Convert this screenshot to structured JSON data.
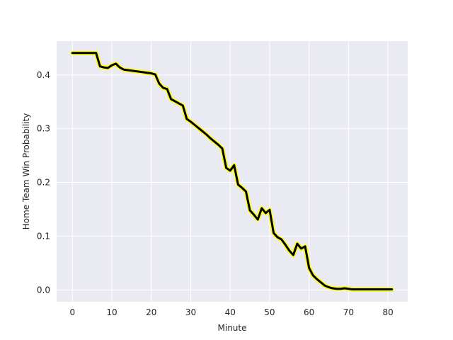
{
  "chart_data": {
    "type": "line",
    "title": "",
    "xlabel": "Minute",
    "ylabel": "Home Team Win Probability",
    "xlim": [
      -4,
      85
    ],
    "ylim": [
      -0.022,
      0.463
    ],
    "xticks": [
      0,
      10,
      20,
      30,
      40,
      50,
      60,
      70,
      80
    ],
    "yticks": [
      0.0,
      0.1,
      0.2,
      0.3,
      0.4
    ],
    "ytick_labels": [
      "0.0",
      "0.1",
      "0.2",
      "0.3",
      "0.4"
    ],
    "grid": true,
    "background": "#eaeaf2",
    "grid_color": "#ffffff",
    "series": [
      {
        "line_color": "#000000",
        "outline_color": "#ffff00",
        "x": [
          0,
          1,
          2,
          3,
          4,
          5,
          6,
          7,
          8,
          9,
          10,
          11,
          12,
          13,
          14,
          15,
          16,
          17,
          18,
          19,
          20,
          21,
          22,
          23,
          24,
          25,
          26,
          27,
          28,
          29,
          30,
          31,
          32,
          33,
          34,
          35,
          36,
          37,
          38,
          39,
          40,
          41,
          42,
          43,
          44,
          45,
          46,
          47,
          48,
          49,
          50,
          51,
          52,
          53,
          54,
          55,
          56,
          57,
          58,
          59,
          60,
          61,
          62,
          63,
          64,
          65,
          66,
          67,
          68,
          69,
          70,
          71,
          72,
          73,
          74,
          75,
          76,
          77,
          78,
          79,
          80,
          81
        ],
        "y": [
          0.441,
          0.441,
          0.441,
          0.441,
          0.441,
          0.441,
          0.441,
          0.416,
          0.414,
          0.413,
          0.418,
          0.421,
          0.414,
          0.41,
          0.409,
          0.408,
          0.407,
          0.406,
          0.405,
          0.404,
          0.403,
          0.401,
          0.384,
          0.376,
          0.374,
          0.355,
          0.351,
          0.347,
          0.343,
          0.318,
          0.313,
          0.307,
          0.301,
          0.295,
          0.289,
          0.282,
          0.276,
          0.27,
          0.263,
          0.227,
          0.222,
          0.232,
          0.196,
          0.19,
          0.183,
          0.148,
          0.14,
          0.131,
          0.152,
          0.143,
          0.149,
          0.106,
          0.098,
          0.094,
          0.084,
          0.073,
          0.065,
          0.086,
          0.077,
          0.081,
          0.041,
          0.027,
          0.02,
          0.014,
          0.008,
          0.005,
          0.003,
          0.002,
          0.002,
          0.003,
          0.002,
          0.001,
          0.001,
          0.001,
          0.001,
          0.001,
          0.001,
          0.001,
          0.001,
          0.001,
          0.001,
          0.001
        ]
      }
    ]
  }
}
